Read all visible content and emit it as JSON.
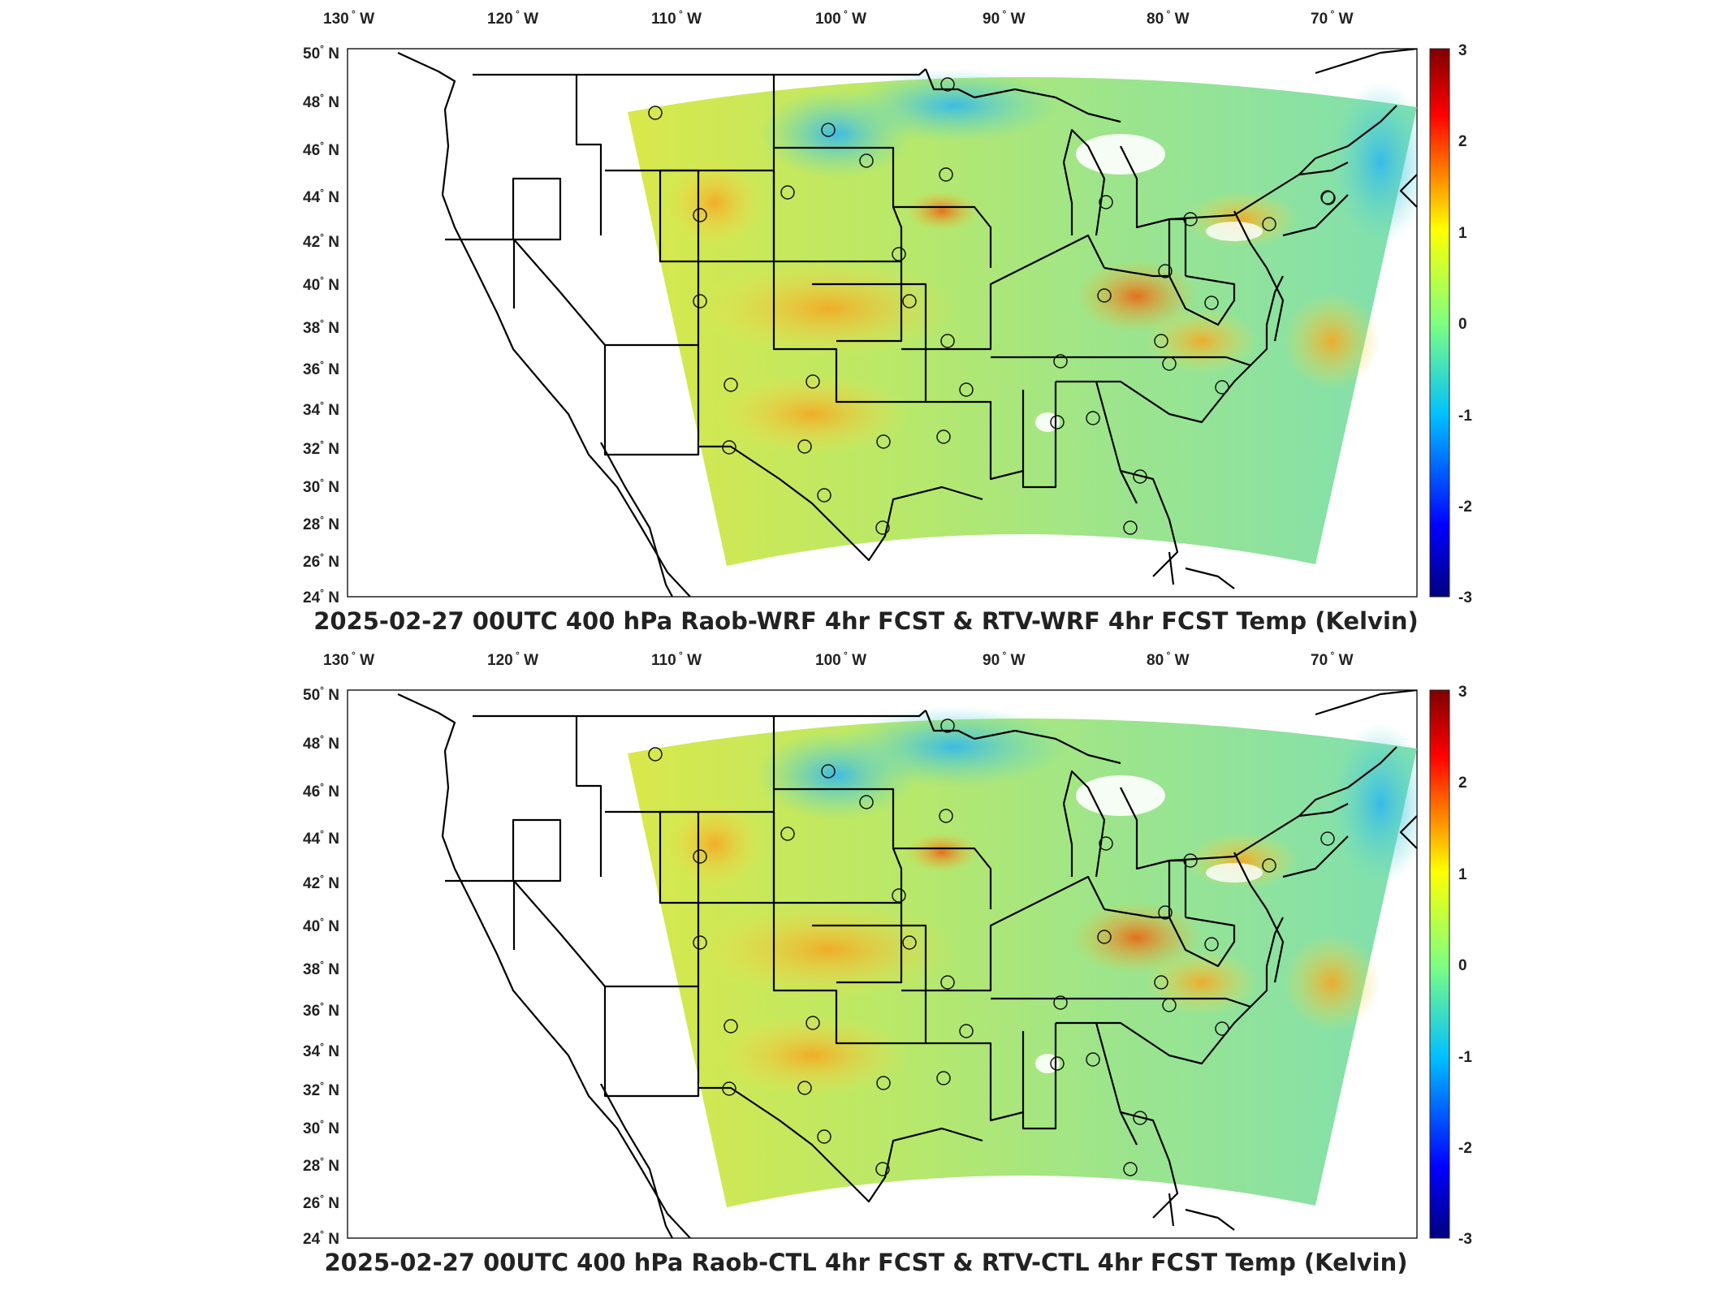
{
  "panels": [
    {
      "title": "2025-02-27 00UTC 400 hPa Raob-WRF 4hr FCST & RTV-WRF 4hr FCST Temp (Kelvin)",
      "lon_labels": [
        "130",
        "120",
        "110",
        "100",
        "90",
        "80",
        "70"
      ],
      "lon_suffix": "W",
      "lat_labels": [
        "50",
        "48",
        "46",
        "44",
        "42",
        "40",
        "38",
        "36",
        "34",
        "32",
        "30",
        "28",
        "26",
        "24"
      ],
      "lat_suffix": "N",
      "colorbar_ticks": [
        "3",
        "2",
        "1",
        "0",
        "-1",
        "-2",
        "-3"
      ]
    },
    {
      "title": "2025-02-27 00UTC 400 hPa Raob-CTL 4hr FCST & RTV-CTL 4hr FCST Temp (Kelvin)",
      "lon_labels": [
        "130",
        "120",
        "110",
        "100",
        "90",
        "80",
        "70"
      ],
      "lon_suffix": "W",
      "lat_labels": [
        "50",
        "48",
        "46",
        "44",
        "42",
        "40",
        "38",
        "36",
        "34",
        "32",
        "30",
        "28",
        "26",
        "24"
      ],
      "lat_suffix": "N",
      "colorbar_ticks": [
        "3",
        "2",
        "1",
        "0",
        "-1",
        "-2",
        "-3"
      ]
    }
  ],
  "colors": {
    "scale": [
      "#7f0000",
      "#ff0000",
      "#ffff00",
      "#00ff9f",
      "#00bfff",
      "#0000ff",
      "#00007f"
    ]
  }
}
